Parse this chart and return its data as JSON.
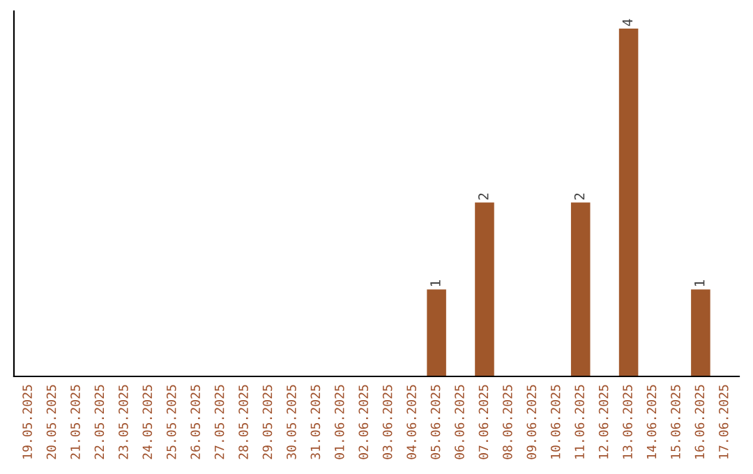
{
  "chart_data": {
    "type": "bar",
    "categories": [
      "19.05.2025",
      "20.05.2025",
      "21.05.2025",
      "22.05.2025",
      "23.05.2025",
      "24.05.2025",
      "25.05.2025",
      "26.05.2025",
      "27.05.2025",
      "28.05.2025",
      "29.05.2025",
      "30.05.2025",
      "31.05.2025",
      "01.06.2025",
      "02.06.2025",
      "03.06.2025",
      "04.06.2025",
      "05.06.2025",
      "06.06.2025",
      "07.06.2025",
      "08.06.2025",
      "09.06.2025",
      "10.06.2025",
      "11.06.2025",
      "12.06.2025",
      "13.06.2025",
      "14.06.2025",
      "15.06.2025",
      "16.06.2025",
      "17.06.2025"
    ],
    "values": [
      null,
      null,
      null,
      null,
      null,
      null,
      null,
      null,
      null,
      null,
      null,
      null,
      null,
      null,
      null,
      null,
      null,
      1,
      null,
      2,
      null,
      null,
      null,
      2,
      null,
      4,
      null,
      null,
      1,
      null
    ],
    "data_labels": true,
    "color": "#a0572a",
    "tick_labels": "x",
    "grid": false,
    "legend": false
  }
}
